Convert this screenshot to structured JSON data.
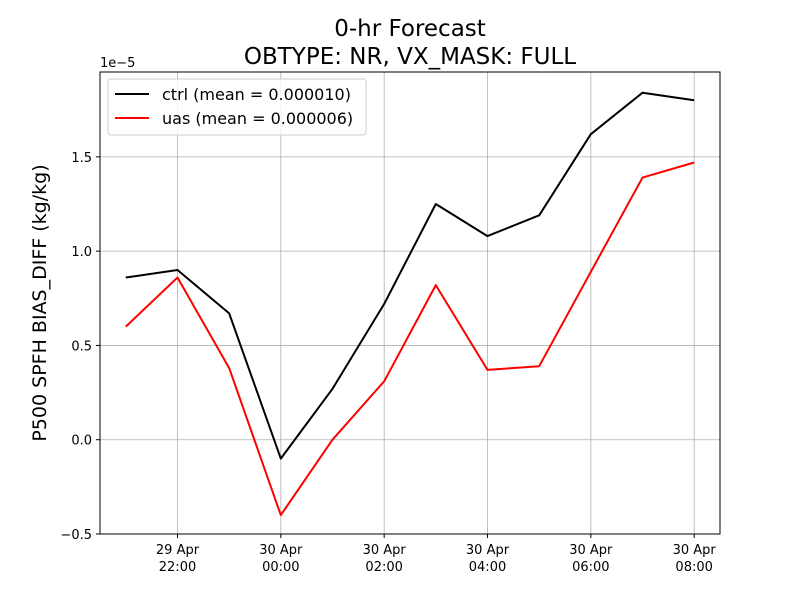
{
  "chart_data": {
    "type": "line",
    "title": "0-hr Forecast",
    "subtitle": "OBTYPE: NR,  VX_MASK: FULL",
    "xlabel": "",
    "ylabel": "P500 SPFH BIAS_DIFF (kg/kg)",
    "y_offset_label": "1e−5",
    "y_scale_multiplier": 1e-05,
    "x": [
      "2023-04-29T21:00",
      "2023-04-29T22:00",
      "2023-04-29T23:00",
      "2023-04-30T00:00",
      "2023-04-30T01:00",
      "2023-04-30T02:00",
      "2023-04-30T03:00",
      "2023-04-30T04:00",
      "2023-04-30T05:00",
      "2023-04-30T06:00",
      "2023-04-30T07:00",
      "2023-04-30T08:00"
    ],
    "x_ticks": [
      {
        "x": "2023-04-29T22:00",
        "line1": "29 Apr",
        "line2": "22:00"
      },
      {
        "x": "2023-04-30T00:00",
        "line1": "30 Apr",
        "line2": "00:00"
      },
      {
        "x": "2023-04-30T02:00",
        "line1": "30 Apr",
        "line2": "02:00"
      },
      {
        "x": "2023-04-30T04:00",
        "line1": "30 Apr",
        "line2": "04:00"
      },
      {
        "x": "2023-04-30T06:00",
        "line1": "30 Apr",
        "line2": "06:00"
      },
      {
        "x": "2023-04-30T08:00",
        "line1": "30 Apr",
        "line2": "08:00"
      }
    ],
    "xlim": [
      "2023-04-29T20:30",
      "2023-04-30T08:30"
    ],
    "ylim": [
      -0.5,
      1.95
    ],
    "y_ticks": [
      -0.5,
      0.0,
      0.5,
      1.0,
      1.5
    ],
    "y_tick_labels": [
      "−0.5",
      "0.0",
      "0.5",
      "1.0",
      "1.5"
    ],
    "grid": true,
    "legend_position": "top-left",
    "series": [
      {
        "name": "ctrl (mean = 0.000010)",
        "color": "#000000",
        "values": [
          0.86,
          0.9,
          0.67,
          -0.1,
          0.27,
          0.72,
          1.25,
          1.08,
          1.19,
          1.62,
          1.84,
          1.8
        ]
      },
      {
        "name": "uas (mean = 0.000006)",
        "color": "#ff0000",
        "values": [
          0.6,
          0.86,
          0.38,
          -0.4,
          0.0,
          0.31,
          0.82,
          0.37,
          0.39,
          0.89,
          1.39,
          1.47
        ]
      }
    ]
  }
}
